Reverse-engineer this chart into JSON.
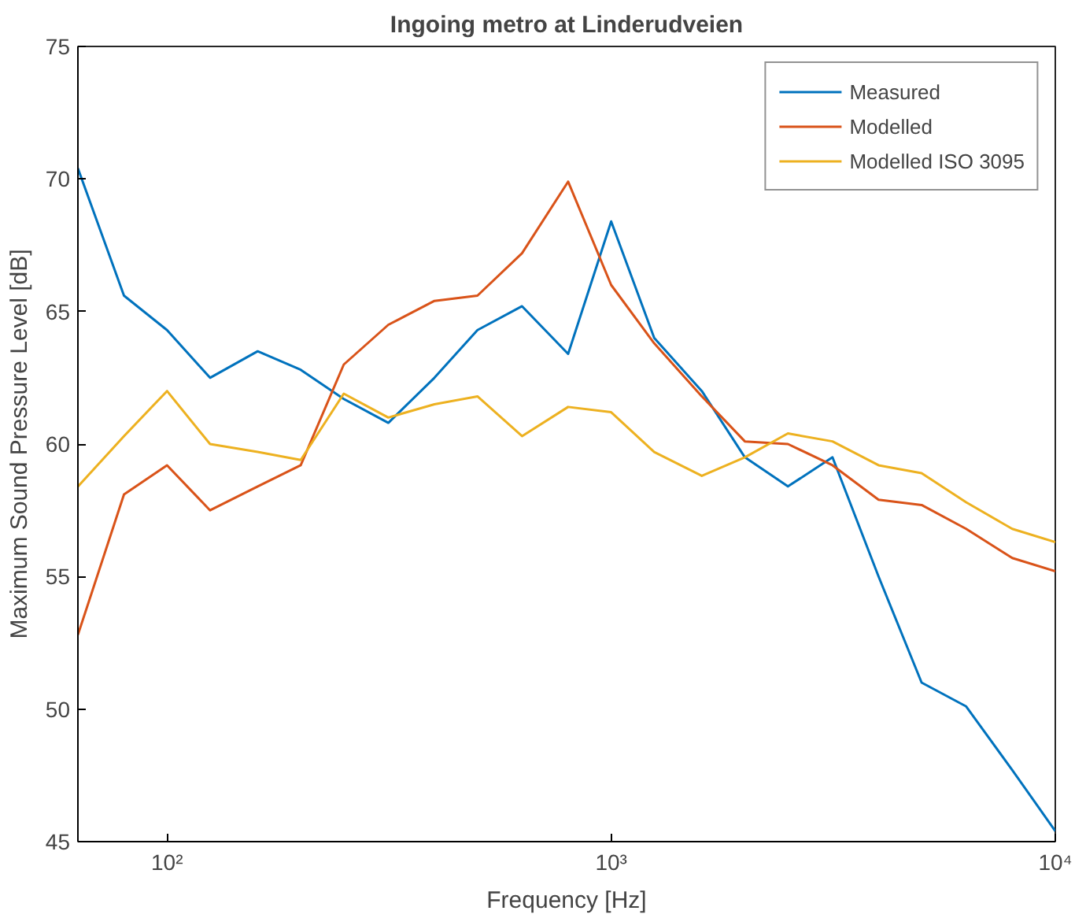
{
  "chart_data": {
    "type": "line",
    "title": "Ingoing metro at Linderudveien",
    "xlabel": "Frequency [Hz]",
    "ylabel": "Maximum Sound Pressure Level [dB]",
    "x": [
      63,
      80,
      100,
      125,
      160,
      200,
      250,
      315,
      400,
      500,
      630,
      800,
      1000,
      1250,
      1600,
      2000,
      2500,
      3150,
      4000,
      5000,
      6300,
      8000,
      10000
    ],
    "series": [
      {
        "name": "Measured",
        "color": "#0072bd",
        "values": [
          70.4,
          65.6,
          64.3,
          62.5,
          63.5,
          62.8,
          61.7,
          60.8,
          62.5,
          64.3,
          65.2,
          63.4,
          68.4,
          64.0,
          62.0,
          59.5,
          58.4,
          59.5,
          55.0,
          51.0,
          50.1,
          47.7,
          45.4
        ]
      },
      {
        "name": "Modelled",
        "color": "#d95319",
        "values": [
          52.8,
          58.1,
          59.2,
          57.5,
          58.4,
          59.2,
          63.0,
          64.5,
          65.4,
          65.6,
          67.2,
          69.9,
          66.0,
          63.8,
          61.8,
          60.1,
          60.0,
          59.2,
          57.9,
          57.7,
          56.8,
          55.7,
          55.2
        ]
      },
      {
        "name": "Modelled ISO 3095",
        "color": "#edb120",
        "values": [
          58.4,
          60.3,
          62.0,
          60.0,
          59.7,
          59.4,
          61.9,
          61.0,
          61.5,
          61.8,
          60.3,
          61.4,
          61.2,
          59.7,
          58.8,
          59.5,
          60.4,
          60.1,
          59.2,
          58.9,
          57.8,
          56.8,
          56.3
        ]
      }
    ],
    "log": "x",
    "xlim": [
      63,
      10000
    ],
    "xticks": [
      {
        "value": 100,
        "label": "10²"
      },
      {
        "value": 1000,
        "label": "10³"
      },
      {
        "value": 10000,
        "label": "10⁴"
      }
    ],
    "ylim": [
      45,
      75
    ],
    "yticks": [
      45,
      50,
      55,
      60,
      65,
      70,
      75
    ],
    "grid": false,
    "legend": "top right",
    "marker": "none",
    "line_style": "solid"
  }
}
